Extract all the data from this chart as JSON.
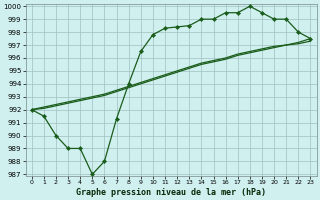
{
  "title": "Graphe pression niveau de la mer (hPa)",
  "background_color": "#d0f0f0",
  "grid_color": "#a0c0c0",
  "line_color": "#1a5c1a",
  "x_hours": [
    0,
    1,
    2,
    3,
    4,
    5,
    6,
    7,
    8,
    9,
    10,
    11,
    12,
    13,
    14,
    15,
    16,
    17,
    18,
    19,
    20,
    21,
    22,
    23
  ],
  "y_min": 987,
  "y_max": 1000,
  "y_ticks": [
    987,
    988,
    989,
    990,
    991,
    992,
    993,
    994,
    995,
    996,
    997,
    998,
    999,
    1000
  ],
  "series_marked": [
    992.0,
    991.5,
    990.0,
    989.0,
    989.0,
    987.0,
    988.0,
    991.3,
    994.0,
    996.5,
    997.8,
    998.3,
    998.4,
    998.5,
    999.0,
    999.0,
    999.5,
    999.5,
    1000.0,
    999.5,
    999.0,
    999.0,
    998.0,
    997.5
  ],
  "series_line1": [
    992.0,
    992.2,
    992.4,
    992.6,
    992.8,
    993.0,
    993.2,
    993.5,
    993.8,
    994.1,
    994.4,
    994.7,
    995.0,
    995.3,
    995.6,
    995.8,
    996.0,
    996.3,
    996.5,
    996.7,
    996.9,
    997.0,
    997.2,
    997.5
  ],
  "series_line2": [
    992.0,
    992.1,
    992.3,
    992.5,
    992.7,
    992.9,
    993.1,
    993.4,
    993.7,
    994.0,
    994.3,
    994.6,
    994.9,
    995.2,
    995.5,
    995.7,
    995.9,
    996.2,
    996.4,
    996.6,
    996.8,
    997.0,
    997.1,
    997.3
  ],
  "tick_fontsize": 5,
  "label_fontsize": 6,
  "lw": 0.9,
  "marker_size": 2.2
}
